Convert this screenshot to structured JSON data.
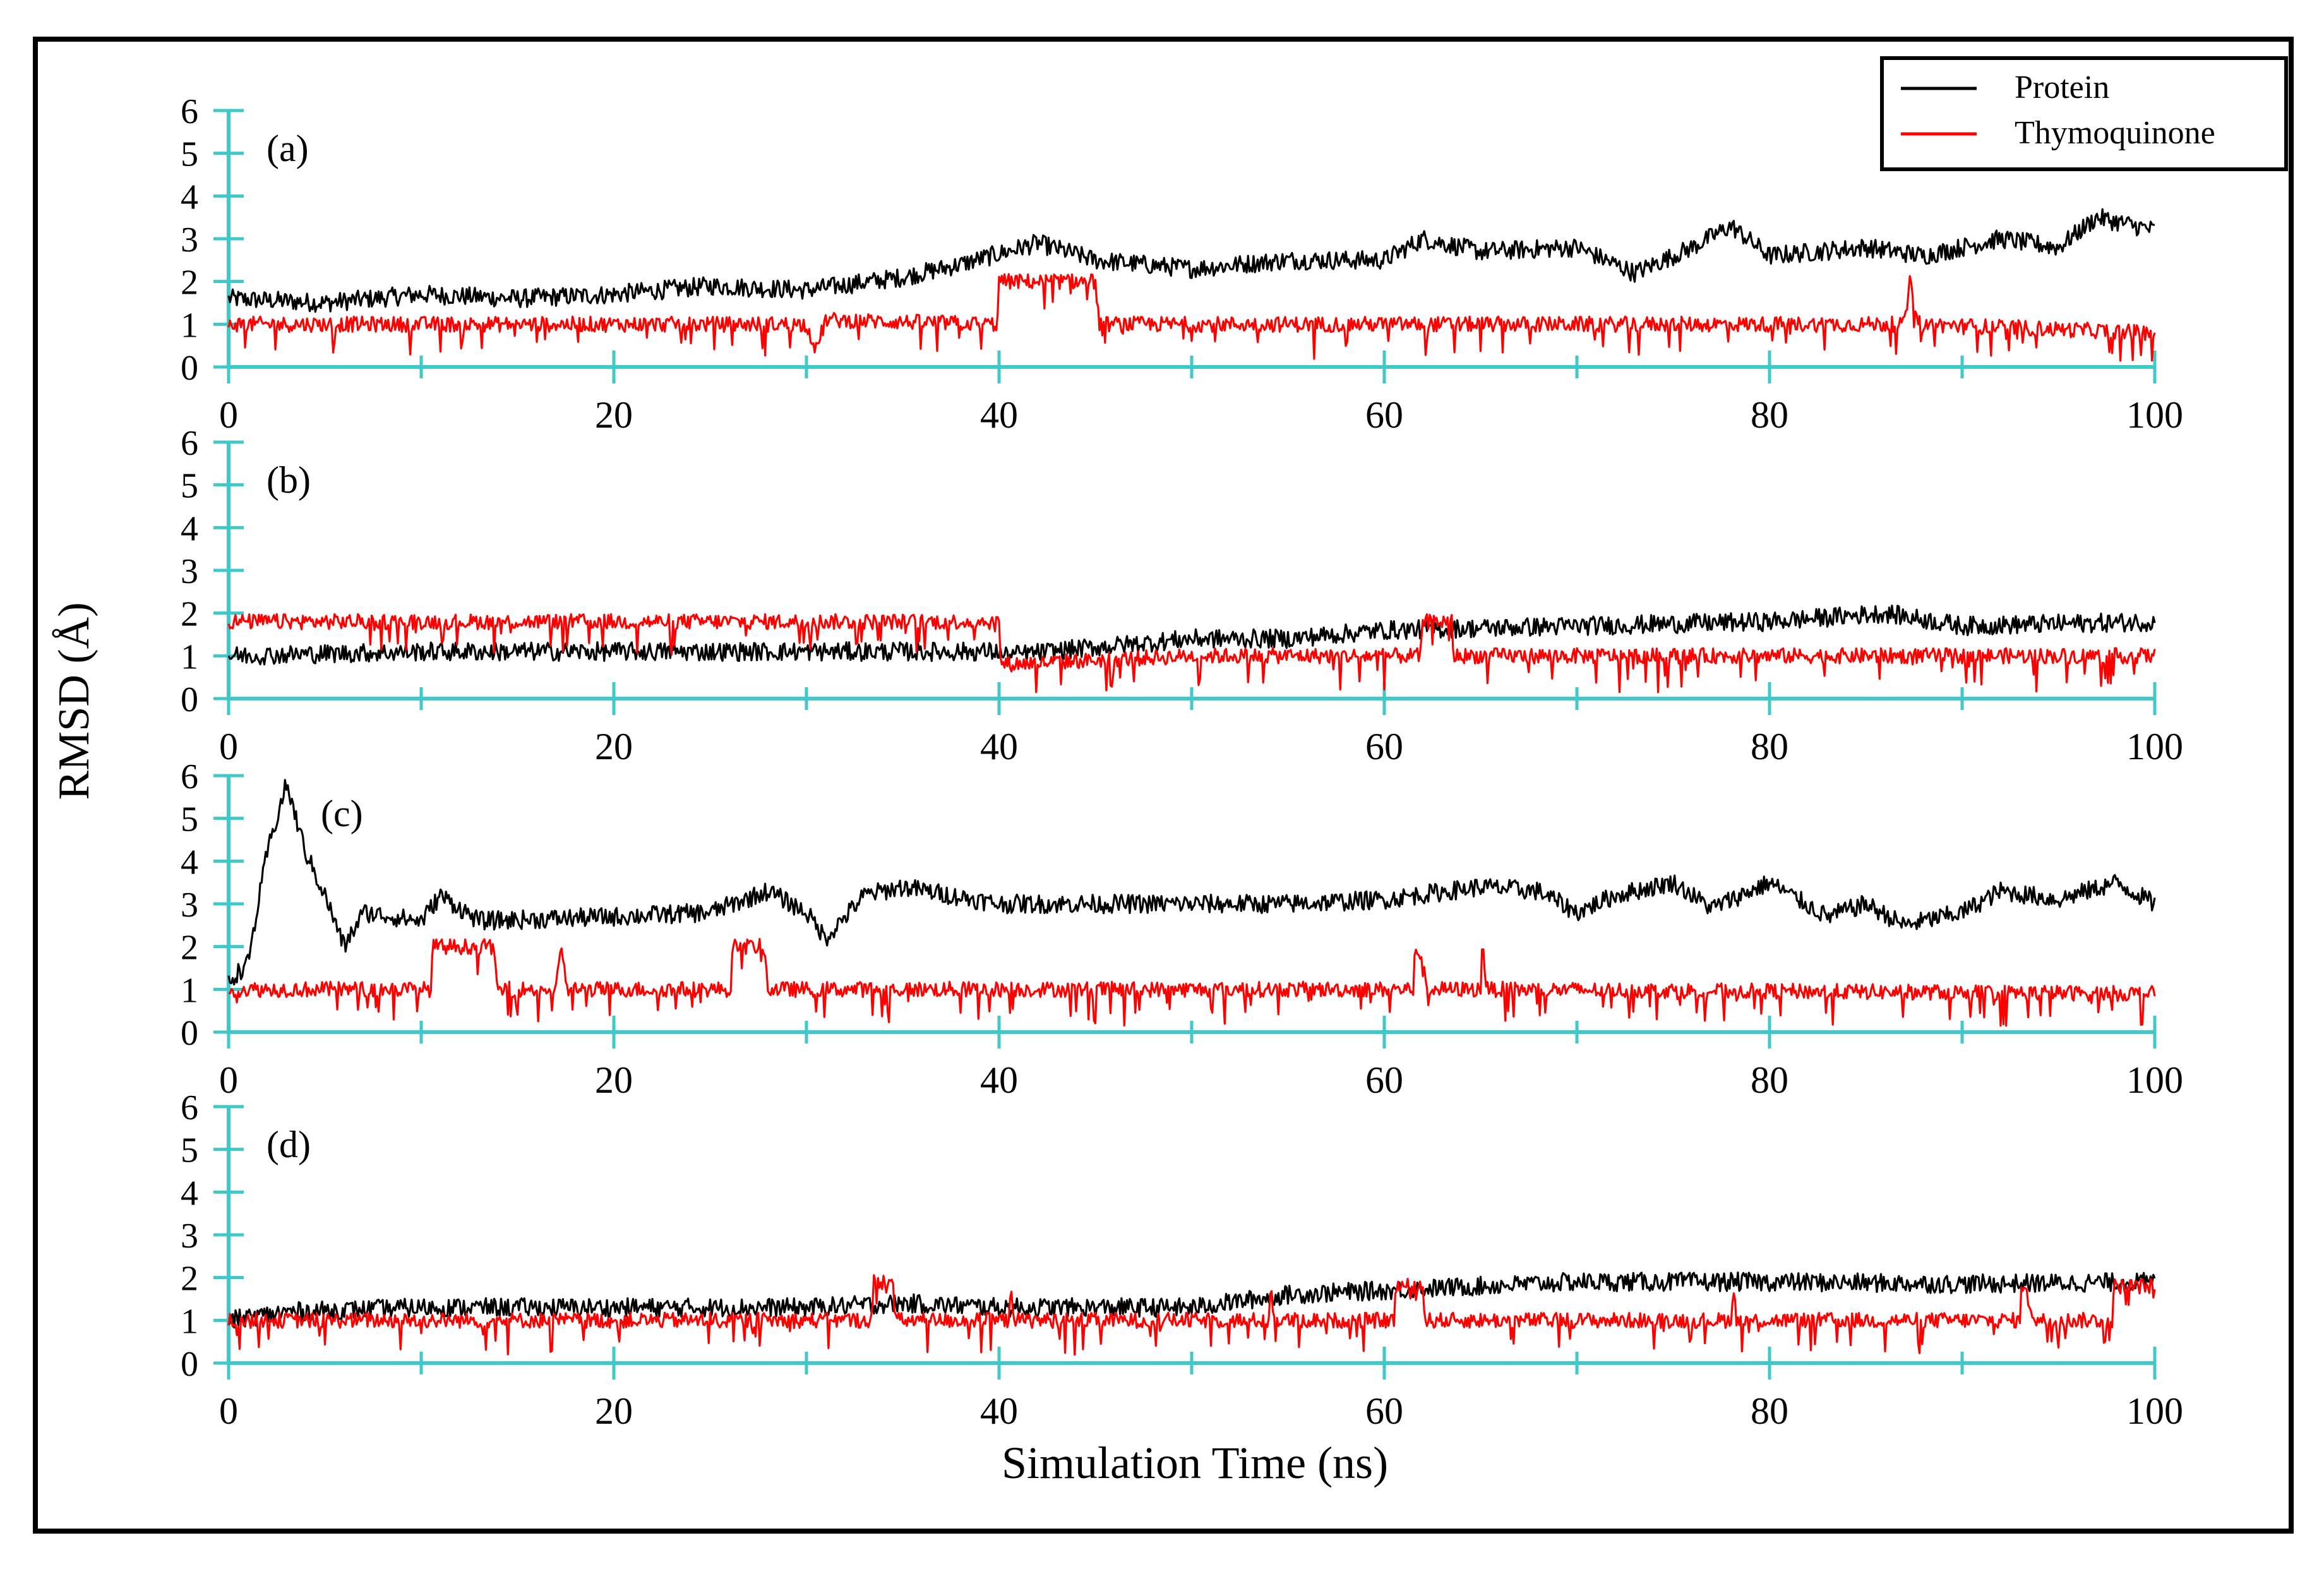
{
  "chart_data": {
    "type": "line",
    "figure_label_ylabel": "RMSD (Å)",
    "xlabel": "Simulation Time (ns)",
    "xlim": [
      0,
      100
    ],
    "ylim": [
      0,
      6
    ],
    "x_ticks": [
      "0",
      "20",
      "40",
      "60",
      "80",
      "100"
    ],
    "y_ticks": [
      "0",
      "1",
      "2",
      "3",
      "4",
      "5",
      "6"
    ],
    "legend": {
      "position": "top-right",
      "entries": [
        "Protein",
        "Thymoquinone"
      ]
    },
    "colors": {
      "protein": "#000000",
      "ligand": "#ff0000",
      "axis": "#3ec8c8"
    },
    "panels": [
      {
        "label": "(a)",
        "series": [
          {
            "name": "Protein",
            "segments": [
              [
                0,
                1.6
              ],
              [
                5,
                1.5
              ],
              [
                10,
                1.7
              ],
              [
                15,
                1.6
              ],
              [
                20,
                1.7
              ],
              [
                25,
                1.9
              ],
              [
                30,
                1.8
              ],
              [
                35,
                2.1
              ],
              [
                38,
                2.4
              ],
              [
                42,
                2.9
              ],
              [
                45,
                2.5
              ],
              [
                50,
                2.3
              ],
              [
                55,
                2.5
              ],
              [
                60,
                2.5
              ],
              [
                62,
                3.0
              ],
              [
                65,
                2.7
              ],
              [
                70,
                2.8
              ],
              [
                73,
                2.2
              ],
              [
                76,
                2.8
              ],
              [
                78,
                3.3
              ],
              [
                80,
                2.6
              ],
              [
                85,
                2.8
              ],
              [
                88,
                2.6
              ],
              [
                92,
                3.0
              ],
              [
                95,
                2.8
              ],
              [
                97,
                3.5
              ],
              [
                100,
                3.2
              ]
            ]
          },
          {
            "name": "Thymoquinone",
            "segments": [
              [
                0,
                1.0
              ],
              [
                30,
                1.0
              ],
              [
                30.5,
                0.4
              ],
              [
                31,
                1.1
              ],
              [
                39.9,
                1.0
              ],
              [
                40,
                2.0
              ],
              [
                45,
                2.0
              ],
              [
                45.2,
                1.0
              ],
              [
                87,
                1.0
              ],
              [
                87.3,
                2.0
              ],
              [
                87.8,
                1.0
              ],
              [
                100,
                0.8
              ]
            ]
          }
        ]
      },
      {
        "label": "(b)",
        "series": [
          {
            "name": "Protein",
            "segments": [
              [
                0,
                1.0
              ],
              [
                5,
                1.05
              ],
              [
                10,
                1.1
              ],
              [
                20,
                1.1
              ],
              [
                30,
                1.1
              ],
              [
                40,
                1.1
              ],
              [
                40.1,
                1.0
              ],
              [
                45,
                1.2
              ],
              [
                50,
                1.4
              ],
              [
                55,
                1.4
              ],
              [
                60,
                1.6
              ],
              [
                65,
                1.65
              ],
              [
                70,
                1.7
              ],
              [
                75,
                1.75
              ],
              [
                80,
                1.8
              ],
              [
                86,
                2.0
              ],
              [
                90,
                1.7
              ],
              [
                95,
                1.75
              ],
              [
                100,
                1.8
              ]
            ]
          },
          {
            "name": "Thymoquinone",
            "segments": [
              [
                0,
                1.8
              ],
              [
                40,
                1.8
              ],
              [
                40.1,
                0.8
              ],
              [
                50,
                1.0
              ],
              [
                61.9,
                1.0
              ],
              [
                62,
                1.8
              ],
              [
                63.5,
                1.8
              ],
              [
                63.6,
                1.0
              ],
              [
                100,
                1.0
              ]
            ]
          }
        ]
      },
      {
        "label": "(c)",
        "series": [
          {
            "name": "Protein",
            "segments": [
              [
                0,
                1.2
              ],
              [
                1,
                1.6
              ],
              [
                2,
                4.2
              ],
              [
                3,
                5.8
              ],
              [
                4,
                4.2
              ],
              [
                5,
                3.2
              ],
              [
                6,
                2.0
              ],
              [
                7,
                2.8
              ],
              [
                10,
                2.6
              ],
              [
                11,
                3.2
              ],
              [
                13,
                2.6
              ],
              [
                20,
                2.7
              ],
              [
                25,
                2.8
              ],
              [
                28,
                3.3
              ],
              [
                30,
                2.8
              ],
              [
                31,
                2.2
              ],
              [
                33,
                3.2
              ],
              [
                35,
                3.4
              ],
              [
                40,
                3.0
              ],
              [
                50,
                3.0
              ],
              [
                55,
                3.0
              ],
              [
                60,
                3.1
              ],
              [
                65,
                3.4
              ],
              [
                68,
                3.3
              ],
              [
                70,
                2.8
              ],
              [
                72,
                3.2
              ],
              [
                75,
                3.5
              ],
              [
                77,
                2.9
              ],
              [
                80,
                3.5
              ],
              [
                83,
                2.7
              ],
              [
                85,
                3.0
              ],
              [
                87,
                2.5
              ],
              [
                90,
                2.8
              ],
              [
                92,
                3.3
              ],
              [
                95,
                3.1
              ],
              [
                98,
                3.5
              ],
              [
                100,
                3.0
              ]
            ]
          },
          {
            "name": "Thymoquinone",
            "segments": [
              [
                0,
                1.0
              ],
              [
                10.5,
                1.0
              ],
              [
                10.6,
                2.0
              ],
              [
                13.8,
                2.0
              ],
              [
                13.9,
                1.0
              ],
              [
                17,
                1.0
              ],
              [
                17.2,
                2.0
              ],
              [
                17.6,
                1.0
              ],
              [
                26,
                1.0
              ],
              [
                26.2,
                2.0
              ],
              [
                27.8,
                2.0
              ],
              [
                28,
                1.0
              ],
              [
                61.5,
                1.0
              ],
              [
                61.6,
                2.1
              ],
              [
                62.3,
                1.0
              ],
              [
                65,
                1.0
              ],
              [
                65.1,
                2.3
              ],
              [
                65.3,
                1.0
              ],
              [
                100,
                0.9
              ]
            ]
          }
        ]
      },
      {
        "label": "(d)",
        "series": [
          {
            "name": "Protein",
            "segments": [
              [
                0,
                1.0
              ],
              [
                3,
                1.2
              ],
              [
                10,
                1.3
              ],
              [
                20,
                1.3
              ],
              [
                30,
                1.3
              ],
              [
                35,
                1.4
              ],
              [
                40,
                1.3
              ],
              [
                50,
                1.3
              ],
              [
                55,
                1.6
              ],
              [
                60,
                1.7
              ],
              [
                65,
                1.8
              ],
              [
                70,
                1.9
              ],
              [
                80,
                1.9
              ],
              [
                90,
                1.85
              ],
              [
                100,
                1.9
              ]
            ]
          },
          {
            "name": "Thymoquinone",
            "segments": [
              [
                0,
                1.0
              ],
              [
                33.4,
                1.0
              ],
              [
                33.5,
                1.9
              ],
              [
                34.5,
                1.9
              ],
              [
                34.6,
                1.0
              ],
              [
                40.5,
                1.0
              ],
              [
                40.6,
                1.9
              ],
              [
                40.8,
                1.0
              ],
              [
                54,
                1.0
              ],
              [
                54.1,
                1.8
              ],
              [
                54.3,
                1.0
              ],
              [
                60.5,
                1.0
              ],
              [
                60.6,
                1.8
              ],
              [
                62,
                1.8
              ],
              [
                62.1,
                1.0
              ],
              [
                78,
                1.0
              ],
              [
                78.1,
                1.8
              ],
              [
                78.3,
                1.0
              ],
              [
                93,
                1.0
              ],
              [
                93.1,
                1.9
              ],
              [
                93.8,
                1.0
              ],
              [
                97.8,
                1.0
              ],
              [
                97.9,
                1.8
              ],
              [
                100,
                1.8
              ]
            ]
          }
        ]
      }
    ]
  }
}
